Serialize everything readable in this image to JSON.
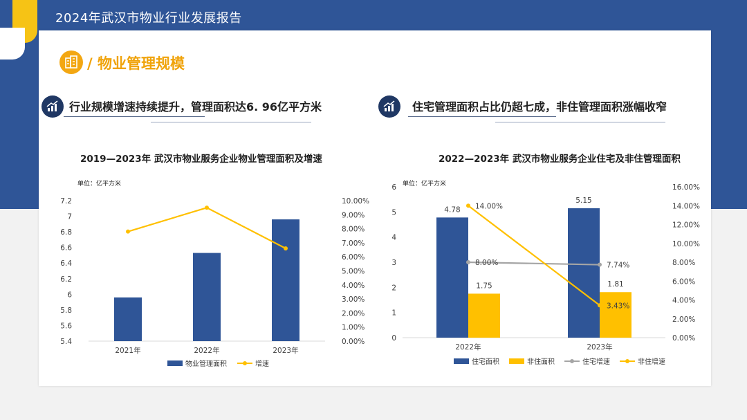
{
  "header": {
    "report_title": "2024年武汉市物业行业发展报告"
  },
  "section": {
    "title": "/ 物业管理规模",
    "icon": "building-icon"
  },
  "left": {
    "subtitle": "行业规模增速持续提升，管理面积达6. 96亿平方米",
    "icon": "growth-chart-icon"
  },
  "right": {
    "subtitle": "住宅管理面积占比仍超七成，非住管理面积涨幅收窄",
    "icon": "growth-chart-icon"
  },
  "colors": {
    "navy": "#2f5597",
    "yellow": "#ffc000",
    "gray": "#a5a5a5",
    "accent": "#f3a712"
  },
  "chart_data": [
    {
      "type": "bar",
      "title": "2019—2023年 武汉市物业服务企业物业管理面积及增速",
      "unit": "单位：亿平方米",
      "categories": [
        "2021年",
        "2022年",
        "2023年"
      ],
      "ylim": [
        5.4,
        7.2
      ],
      "y_ticks": [
        "7.2",
        "7",
        "6.8",
        "6.6",
        "6.4",
        "6.2",
        "6",
        "5.8",
        "5.6",
        "5.4"
      ],
      "y2lim": [
        0,
        10
      ],
      "y2_ticks": [
        "10.00%",
        "9.00%",
        "8.00%",
        "7.00%",
        "6.00%",
        "5.00%",
        "4.00%",
        "3.00%",
        "2.00%",
        "1.00%",
        "0.00%"
      ],
      "series": [
        {
          "name": "物业管理面积",
          "kind": "bar",
          "axis": "left",
          "color": "#2f5597",
          "values": [
            5.96,
            6.53,
            6.96
          ]
        },
        {
          "name": "增速",
          "kind": "line",
          "axis": "right",
          "color": "#ffc000",
          "values": [
            7.8,
            9.5,
            6.6
          ]
        }
      ],
      "legend": "bottom",
      "grid": false
    },
    {
      "type": "bar",
      "title": "2022—2023年 武汉市物业服务企业住宅及非住管理面积",
      "unit": "单位：亿平方米",
      "categories": [
        "2022年",
        "2023年"
      ],
      "ylim": [
        0,
        6
      ],
      "y_ticks": [
        "6",
        "5",
        "4",
        "3",
        "2",
        "1",
        "0"
      ],
      "y2lim": [
        0,
        16
      ],
      "y2_ticks": [
        "16.00%",
        "14.00%",
        "12.00%",
        "10.00%",
        "8.00%",
        "6.00%",
        "4.00%",
        "2.00%",
        "0.00%"
      ],
      "series": [
        {
          "name": "住宅面积",
          "kind": "bar",
          "axis": "left",
          "color": "#2f5597",
          "values": [
            4.78,
            5.15
          ],
          "labels": [
            "4.78",
            "5.15"
          ]
        },
        {
          "name": "非住面积",
          "kind": "bar",
          "axis": "left",
          "color": "#ffc000",
          "values": [
            1.75,
            1.81
          ],
          "labels": [
            "1.75",
            "1.81"
          ]
        },
        {
          "name": "住宅增速",
          "kind": "line",
          "axis": "right",
          "color": "#a5a5a5",
          "values": [
            8.0,
            7.74
          ],
          "labels": [
            "8.00%",
            "7.74%"
          ]
        },
        {
          "name": "非住增速",
          "kind": "line",
          "axis": "right",
          "color": "#ffc000",
          "values": [
            14.0,
            3.43
          ],
          "labels": [
            "14.00%",
            "3.43%"
          ]
        }
      ],
      "legend": "bottom",
      "grid": false
    }
  ]
}
